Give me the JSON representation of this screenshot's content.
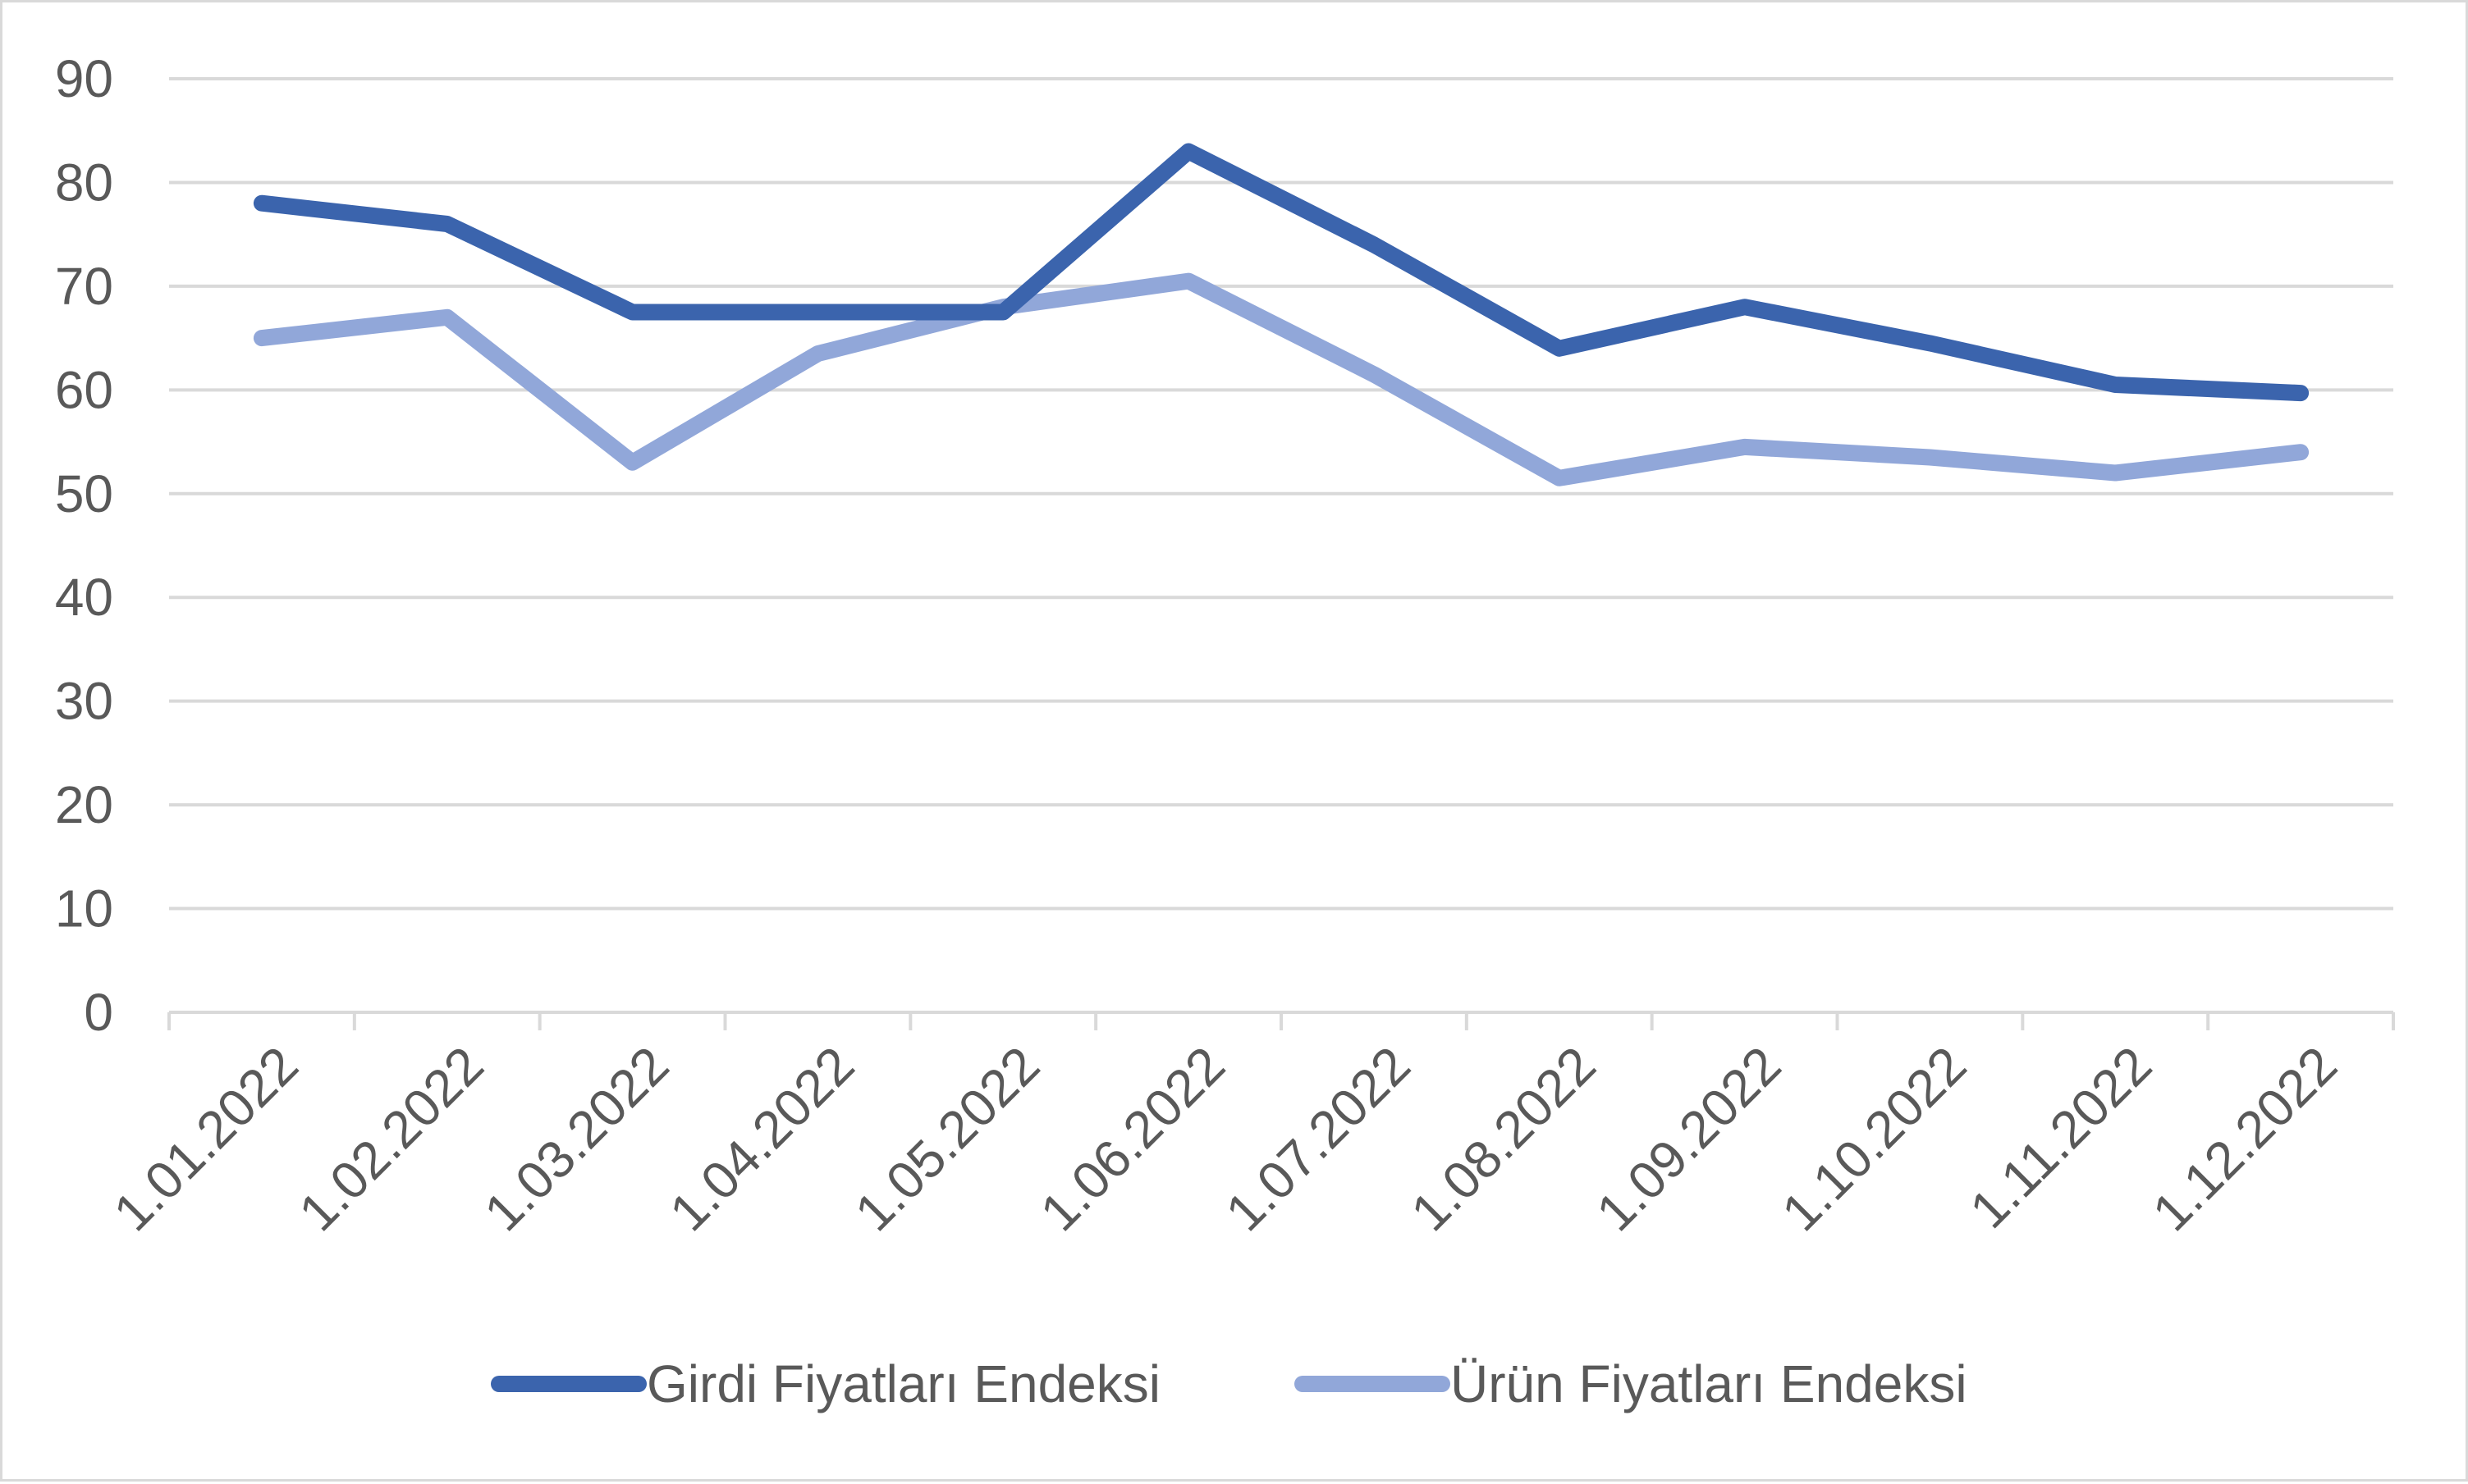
{
  "chart_data": {
    "type": "line",
    "title": "",
    "xlabel": "",
    "ylabel": "",
    "categories": [
      "1.01.2022",
      "1.02.2022",
      "1.03.2022",
      "1.04.2022",
      "1.05.2022",
      "1.06.2022",
      "1.07.2022",
      "1.08.2022",
      "1.09.2022",
      "1.10.2022",
      "1.11.2022",
      "1.12.2022"
    ],
    "series": [
      {
        "name": "Girdi Fiyatları Endeksi",
        "color": "#3b64ad",
        "values": [
          78,
          76,
          67.5,
          67.5,
          67.5,
          83,
          74,
          64,
          68,
          64.5,
          60.5,
          59.7
        ]
      },
      {
        "name": "Ürün Fiyatları Endeksi",
        "color": "#91a7d9",
        "values": [
          65,
          67,
          53,
          63.5,
          68,
          70.5,
          61.5,
          51.5,
          54.5,
          53.5,
          52,
          54
        ]
      }
    ],
    "ylim": [
      0,
      90
    ],
    "yticks": [
      "0",
      "10",
      "20",
      "30",
      "40",
      "50",
      "60",
      "70",
      "80",
      "90"
    ],
    "grid": true,
    "legend_position": "bottom"
  }
}
